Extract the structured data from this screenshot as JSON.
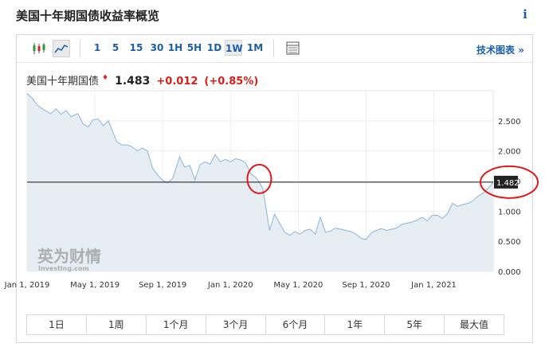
{
  "page_title": "美国十年期国债收益率概览",
  "info_icon": "i",
  "toolbar": {
    "chart_types": [
      "candlestick-icon",
      "area-chart-icon"
    ],
    "intervals": [
      "1",
      "5",
      "15",
      "30",
      "1H",
      "5H",
      "1D",
      "1W",
      "1M"
    ],
    "active_interval": "1W",
    "table_icon": "table-icon",
    "tech_chart_label": "技术图表",
    "tech_chart_arrow": "»"
  },
  "quote": {
    "name": "美国十年期国债",
    "price": "1.483",
    "change": "+0.012",
    "change_pct": "(+0.85%)"
  },
  "watermark": {
    "logo_text": "英为财情",
    "sub_text": "Investing.com"
  },
  "colors": {
    "accent": "#1a5ea8",
    "down_up_red": "#d91e18",
    "line": "#8ab4d8",
    "area": "#e6eef4",
    "annotation": "#e01818"
  },
  "range_tabs": [
    "1日",
    "1周",
    "1个月",
    "3个月",
    "6个月",
    "1年",
    "5年",
    "最大值"
  ],
  "chart_data": {
    "type": "area",
    "x_tick_labels": [
      "Jan 1, 2019",
      "May 1, 2019",
      "Sep 1, 2019",
      "Jan 1, 2020",
      "May 1, 2020",
      "Sep 1, 2020",
      "Jan 1, 2021"
    ],
    "y_tick_labels": [
      "2.500",
      "2.000",
      "1.500",
      "1.000",
      "0.500",
      "0.000"
    ],
    "ylim": [
      0,
      3.0
    ],
    "last_value_label": "1.482",
    "reference_line": 1.482,
    "x_range_months": [
      0,
      27.5
    ],
    "series": [
      {
        "x_months": [
          0,
          0.3,
          0.6,
          1.0,
          1.4,
          1.7,
          2.0,
          2.3,
          2.6,
          3.0,
          3.3,
          3.6,
          3.9,
          4.2,
          4.5,
          4.8,
          5.0,
          5.3,
          5.6,
          5.9,
          6.2,
          6.5,
          6.8,
          7.1,
          7.4,
          7.7,
          8.0,
          8.3,
          8.6,
          9.0,
          9.3,
          9.6,
          9.9,
          10.2,
          10.5,
          10.8,
          11.1,
          11.4,
          11.7,
          12.0,
          12.3,
          12.6,
          12.9,
          13.2,
          13.5,
          13.7,
          13.9,
          14.1,
          14.3,
          14.6,
          14.9,
          15.2,
          15.5,
          15.8,
          16.1,
          16.4,
          16.7,
          17.0,
          17.3,
          17.6,
          17.9,
          18.2,
          18.5,
          18.8,
          19.1,
          19.4,
          19.7,
          20.0,
          20.3,
          20.6,
          20.9,
          21.2,
          21.5,
          21.8,
          22.1,
          22.4,
          22.7,
          23.0,
          23.3,
          23.6,
          23.9,
          24.2,
          24.5,
          24.8,
          25.1,
          25.4,
          25.7,
          26.0,
          26.3,
          26.6,
          26.9,
          27.2,
          27.5
        ],
        "values": [
          2.95,
          2.88,
          2.76,
          2.68,
          2.62,
          2.7,
          2.61,
          2.67,
          2.57,
          2.62,
          2.45,
          2.4,
          2.52,
          2.53,
          2.42,
          2.5,
          2.35,
          2.15,
          2.1,
          2.1,
          2.07,
          2.0,
          2.05,
          2.0,
          1.72,
          1.6,
          1.51,
          1.47,
          1.55,
          1.9,
          1.73,
          1.76,
          1.52,
          1.77,
          1.82,
          1.78,
          1.94,
          1.82,
          1.86,
          1.82,
          1.87,
          1.85,
          1.8,
          1.62,
          1.56,
          1.48,
          1.38,
          1.05,
          0.68,
          0.95,
          0.8,
          0.65,
          0.6,
          0.66,
          0.62,
          0.68,
          0.7,
          0.62,
          0.9,
          0.65,
          0.67,
          0.72,
          0.7,
          0.68,
          0.66,
          0.62,
          0.55,
          0.53,
          0.64,
          0.68,
          0.71,
          0.68,
          0.7,
          0.72,
          0.78,
          0.8,
          0.82,
          0.85,
          0.9,
          0.84,
          0.93,
          0.93,
          0.88,
          0.96,
          1.13,
          1.08,
          1.11,
          1.13,
          1.17,
          1.25,
          1.3,
          1.38,
          1.48
        ]
      }
    ]
  }
}
